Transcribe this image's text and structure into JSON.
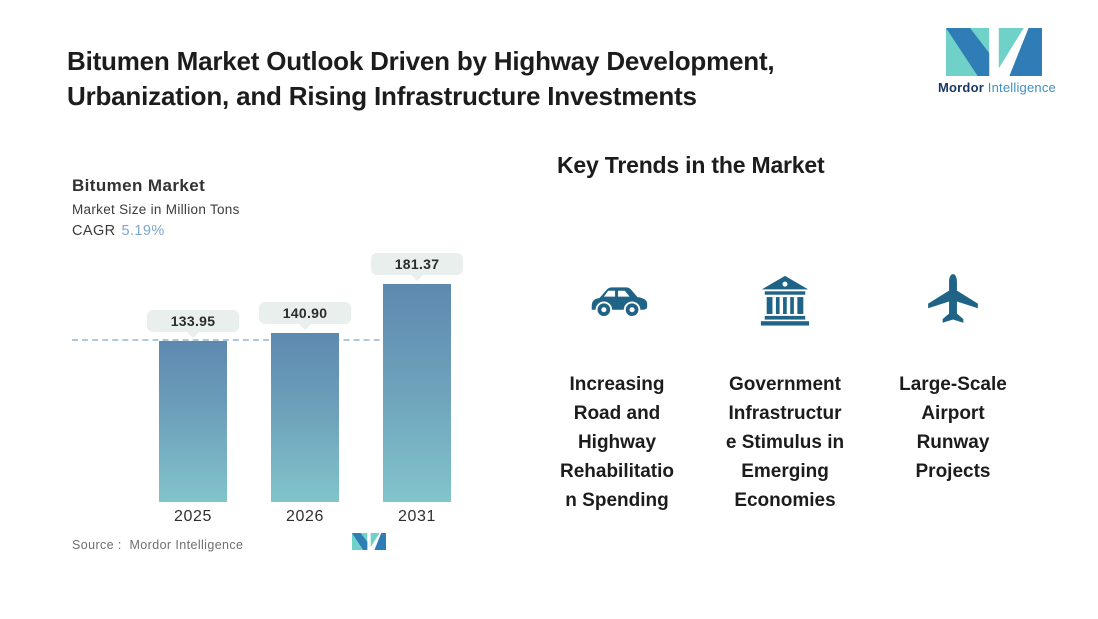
{
  "header": {
    "title": "Bitumen Market Outlook Driven by Highway Development,\nUrbanization, and Rising Infrastructure Investments",
    "logo": {
      "brand_bold": "Mordor",
      "brand_light": "Intelligence"
    }
  },
  "chart": {
    "title": "Bitumen Market",
    "subtitle": "Market Size in Million Tons",
    "cagr_label": "CAGR",
    "cagr_value": "5.19%",
    "source": "Source :  Mordor Intelligence"
  },
  "chart_data": {
    "type": "bar",
    "title": "Bitumen Market",
    "ylabel": "Market Size in Million Tons",
    "cagr": "5.19%",
    "categories": [
      "2025",
      "2026",
      "2031"
    ],
    "values": [
      133.95,
      140.9,
      181.37
    ],
    "value_labels": [
      "133.95",
      "140.90",
      "181.37"
    ],
    "reference_line": 133.95,
    "grid": false,
    "legend": false,
    "bar_color_gradient": [
      "#5d89af",
      "#82c4cb"
    ]
  },
  "trends": {
    "heading": "Key Trends in the Market",
    "items": [
      {
        "icon": "car-icon",
        "label": "Increasing\nRoad and\nHighway\nRehabilitatio\nn Spending"
      },
      {
        "icon": "bank-icon",
        "label": "Government\nInfrastructur\ne Stimulus in\nEmerging\nEconomies"
      },
      {
        "icon": "plane-icon",
        "label": "Large-Scale\nAirport\nRunway\nProjects"
      }
    ]
  },
  "colors": {
    "brand_teal": "#6fd1c8",
    "brand_blue": "#2f7cb6",
    "brand_navy": "#173a64",
    "wordmark_light_blue": "#3f8fc2",
    "icon_teal": "#1f6486",
    "bar_top": "#5d89af",
    "bar_bottom": "#82c4cb",
    "pill_bg": "#e9efec",
    "cagr_value": "#7ba7cd",
    "dashed": "#b0c9da",
    "text_dark": "#1c1c1c",
    "text_gray": "#6f6f6f"
  }
}
